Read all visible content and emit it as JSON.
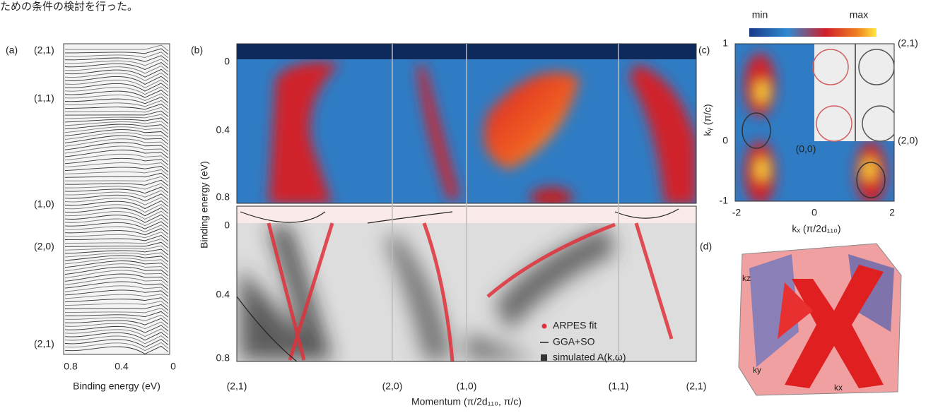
{
  "caption_fragment": "ための条件の検討を行った。",
  "panel_a": {
    "label": "(a)",
    "k_labels": [
      "(2,1)",
      "(1,1)",
      "(1,0)",
      "(2,0)",
      "(2,1)"
    ],
    "x_ticks": [
      "0.8",
      "0.4",
      "0"
    ],
    "x_label": "Binding energy (eV)"
  },
  "panel_b": {
    "label": "(b)",
    "y_ticks_top": [
      "0",
      "0.4",
      "0.8"
    ],
    "y_ticks_bottom": [
      "0",
      "0.4",
      "0.8"
    ],
    "y_label": "Binding energy (eV)",
    "x_ticks": [
      "(2,1)",
      "(2,0)",
      "(1,0)",
      "(1,1)",
      "(2,1)"
    ],
    "x_label": "Momentum (π/2d₁₁₀, π/c)",
    "legend": [
      "ARPES fit",
      "GGA+SO",
      "simulated A(k,ω)"
    ]
  },
  "panel_c": {
    "label": "(c)",
    "colorbar": [
      "min",
      "max"
    ],
    "y_ticks": [
      "1",
      "0",
      "-1"
    ],
    "x_ticks": [
      "-2",
      "0",
      "2"
    ],
    "y_label": "kᵧ (π/c)",
    "x_label": "kₓ (π/2d₁₁₀)",
    "points": [
      "(2,1)",
      "(2,0)",
      "(0,0)"
    ]
  },
  "panel_d": {
    "label": "(d)",
    "axes": [
      "kz",
      "ky",
      "kx"
    ]
  }
}
